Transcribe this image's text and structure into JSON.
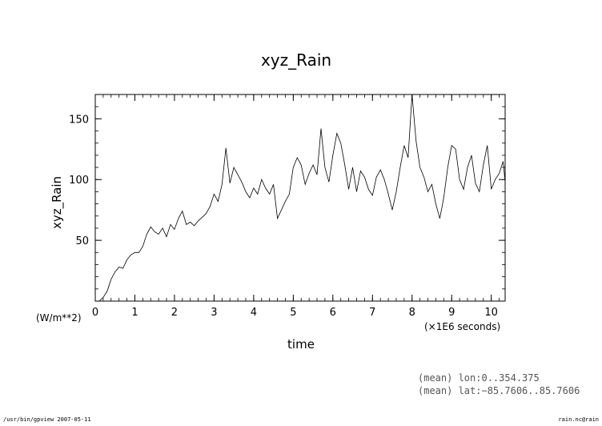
{
  "chart_data": {
    "type": "line",
    "title": "xyz_Rain",
    "xlabel": "time",
    "ylabel": "xyz_Rain",
    "y_units": "(W/m**2)",
    "x_units": "(×1E6 seconds)",
    "xlim": [
      0,
      10.35
    ],
    "ylim": [
      0,
      170
    ],
    "x_ticks": [
      0,
      1,
      2,
      3,
      4,
      5,
      6,
      7,
      8,
      9,
      10
    ],
    "y_ticks": [
      50,
      100,
      150
    ],
    "grid": false,
    "series": [
      {
        "x": [
          0,
          0.1,
          0.2,
          0.3,
          0.4,
          0.5,
          0.6,
          0.7,
          0.8,
          0.9,
          1.0,
          1.1,
          1.2,
          1.3,
          1.4,
          1.5,
          1.6,
          1.7,
          1.8,
          1.9,
          2.0,
          2.1,
          2.2,
          2.3,
          2.4,
          2.5,
          2.6,
          2.7,
          2.8,
          2.9,
          3.0,
          3.1,
          3.2,
          3.3,
          3.4,
          3.5,
          3.6,
          3.7,
          3.8,
          3.9,
          4.0,
          4.1,
          4.2,
          4.3,
          4.4,
          4.5,
          4.6,
          4.7,
          4.8,
          4.9,
          5.0,
          5.1,
          5.2,
          5.3,
          5.4,
          5.5,
          5.6,
          5.7,
          5.8,
          5.9,
          6.0,
          6.1,
          6.2,
          6.3,
          6.4,
          6.5,
          6.6,
          6.7,
          6.8,
          6.9,
          7.0,
          7.1,
          7.2,
          7.3,
          7.4,
          7.5,
          7.6,
          7.7,
          7.8,
          7.9,
          8.0,
          8.1,
          8.2,
          8.3,
          8.4,
          8.5,
          8.6,
          8.7,
          8.8,
          8.9,
          9.0,
          9.1,
          9.2,
          9.3,
          9.4,
          9.5,
          9.6,
          9.7,
          9.8,
          9.9,
          10.0,
          10.1,
          10.2,
          10.3,
          10.35
        ],
        "values": [
          0,
          0,
          3,
          8,
          18,
          24,
          28,
          27,
          34,
          38,
          40,
          40,
          45,
          55,
          61,
          57,
          55,
          60,
          53,
          63,
          59,
          68,
          74,
          63,
          65,
          62,
          66,
          69,
          72,
          78,
          88,
          82,
          96,
          126,
          97,
          110,
          104,
          98,
          90,
          85,
          93,
          88,
          100,
          93,
          88,
          96,
          68,
          75,
          82,
          88,
          110,
          118,
          112,
          96,
          105,
          112,
          104,
          142,
          110,
          98,
          120,
          138,
          130,
          112,
          92,
          110,
          90,
          107,
          102,
          92,
          87,
          102,
          108,
          100,
          88,
          75,
          90,
          110,
          128,
          118,
          170,
          132,
          110,
          102,
          90,
          96,
          80,
          68,
          85,
          110,
          128,
          125,
          100,
          92,
          110,
          120,
          97,
          90,
          112,
          128,
          92,
          100,
          105,
          115,
          98
        ]
      }
    ]
  },
  "meta_lines": [
    "(mean) lon:0..354.375",
    "(mean) lat:−85.7606..85.7606"
  ],
  "footer_left": "/usr/bin/gpview  2007-05-11",
  "footer_right": "rain.nc@rain"
}
